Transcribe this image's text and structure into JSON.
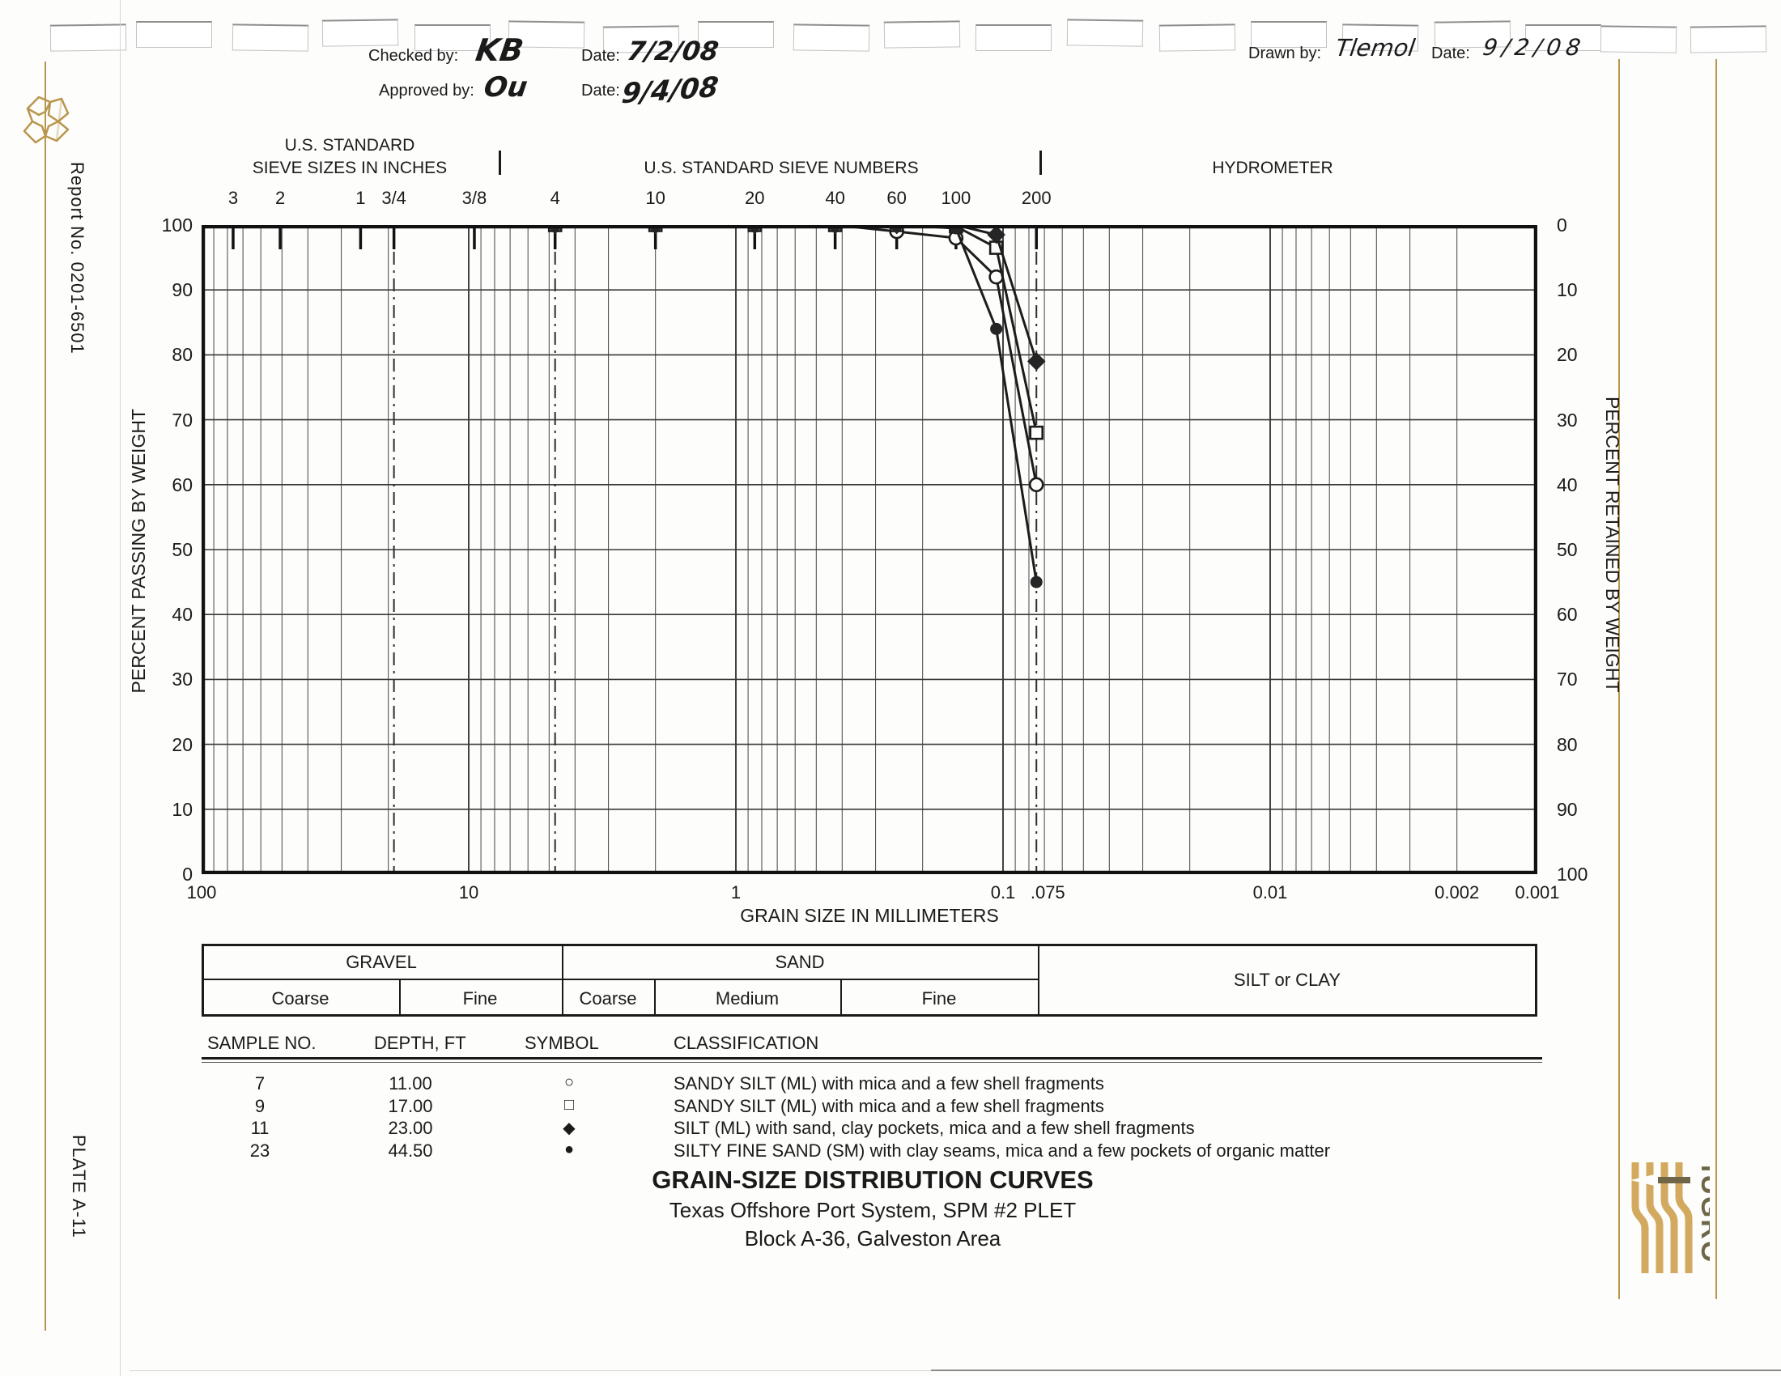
{
  "page": {
    "report_no": "Report No. 0201-6501",
    "plate": "PLATE A-11"
  },
  "header": {
    "checked_by_label": "Checked by:",
    "checked_by": "KB",
    "checked_date_label": "Date:",
    "checked_date": "7/2/08",
    "approved_by_label": "Approved by:",
    "approved_by": "Ou",
    "approved_date_label": "Date:",
    "approved_date": "9/4/08",
    "drawn_by_label": "Drawn by:",
    "drawn_by": "Tlemol",
    "drawn_date_label": "Date:",
    "drawn_date": "9/2/08"
  },
  "axes": {
    "top_group_line1": "U.S. STANDARD",
    "top_group_line2": "SIEVE SIZES IN INCHES",
    "top_group_numbers": "U.S. STANDARD SIEVE NUMBERS",
    "top_group_hydro": "HYDROMETER",
    "left_title": "PERCENT PASSING BY WEIGHT",
    "right_title": "PERCENT RETAINED BY WEIGHT",
    "x_title": "GRAIN SIZE IN MILLIMETERS",
    "top_ticks": [
      {
        "label": "3",
        "mm": 76.2
      },
      {
        "label": "2",
        "mm": 50.8
      },
      {
        "label": "1",
        "mm": 25.4
      },
      {
        "label": "3/4",
        "mm": 19.05
      },
      {
        "label": "3/8",
        "mm": 9.525
      },
      {
        "label": "4",
        "mm": 4.75
      },
      {
        "label": "10",
        "mm": 2.0
      },
      {
        "label": "20",
        "mm": 0.85
      },
      {
        "label": "40",
        "mm": 0.425
      },
      {
        "label": "60",
        "mm": 0.25
      },
      {
        "label": "100",
        "mm": 0.15
      },
      {
        "label": "200",
        "mm": 0.075
      }
    ],
    "bottom_ticks": [
      {
        "label": "100",
        "mm": 100
      },
      {
        "label": "10",
        "mm": 10
      },
      {
        "label": "1",
        "mm": 1
      },
      {
        "label": "0.1",
        "mm": 0.1
      },
      {
        "label": ".075",
        "mm": 0.068
      },
      {
        "label": "0.01",
        "mm": 0.01
      },
      {
        "label": "0.002",
        "mm": 0.002
      },
      {
        "label": "0.001",
        "mm": 0.001
      }
    ],
    "left_ticks": [
      100,
      90,
      80,
      70,
      60,
      50,
      40,
      30,
      20,
      10,
      0
    ],
    "right_ticks": [
      0,
      10,
      20,
      30,
      40,
      50,
      60,
      70,
      80,
      90,
      100
    ]
  },
  "chart_data": {
    "type": "line",
    "x_scale": "log",
    "x_range_mm": [
      100,
      0.001
    ],
    "ylim": [
      0,
      100
    ],
    "grid": "log-minor-and-major",
    "boundary_lines_mm": [
      19.05,
      4.75,
      0.075
    ],
    "x_mm": [
      4.75,
      2.0,
      0.85,
      0.425,
      0.25,
      0.15,
      0.106,
      0.075
    ],
    "series": [
      {
        "sample": "7",
        "marker": "circle-open",
        "passing": [
          100,
          100,
          100,
          100,
          99,
          98,
          92,
          60
        ]
      },
      {
        "sample": "9",
        "marker": "square-open",
        "passing": [
          100,
          100,
          100,
          100,
          100,
          99.8,
          96.5,
          68
        ]
      },
      {
        "sample": "11",
        "marker": "diamond-filled",
        "passing": [
          100,
          100,
          100,
          100,
          100,
          100,
          98.5,
          79
        ]
      },
      {
        "sample": "23",
        "marker": "circle-filled",
        "passing": [
          100,
          100,
          100,
          100,
          100,
          99.5,
          84,
          45
        ]
      }
    ]
  },
  "size_table": {
    "gravel": "GRAVEL",
    "sand": "SAND",
    "silt": "SILT or CLAY",
    "gravel_coarse": "Coarse",
    "gravel_fine": "Fine",
    "sand_coarse": "Coarse",
    "sand_medium": "Medium",
    "sand_fine": "Fine"
  },
  "sample_table": {
    "headers": [
      "SAMPLE NO.",
      "DEPTH, FT",
      "SYMBOL",
      "CLASSIFICATION"
    ],
    "rows": [
      {
        "no": "7",
        "depth": "11.00",
        "symbol": "○",
        "classification": "SANDY SILT (ML) with mica and a few shell fragments"
      },
      {
        "no": "9",
        "depth": "17.00",
        "symbol": "□",
        "classification": "SANDY SILT (ML) with mica and a few shell fragments"
      },
      {
        "no": "11",
        "depth": "23.00",
        "symbol": "◆",
        "classification": "SILT (ML) with sand, clay pockets, mica and a few shell fragments"
      },
      {
        "no": "23",
        "depth": "44.50",
        "symbol": "●",
        "classification": "SILTY FINE SAND (SM) with clay seams, mica and a few pockets of organic matter"
      }
    ]
  },
  "title_block": {
    "title": "GRAIN-SIZE DISTRIBUTION CURVES",
    "subtitle1": "Texas Offshore Port System, SPM #2 PLET",
    "subtitle2": "Block A-36, Galveston Area"
  },
  "logo": {
    "brand": "fUGRO"
  },
  "colors": {
    "gold": "#b9964e",
    "logo_tan": "#d2a95f",
    "logo_dark": "#6f6648",
    "ink": "#1a1a1a",
    "grid": "#4a4a4a"
  }
}
